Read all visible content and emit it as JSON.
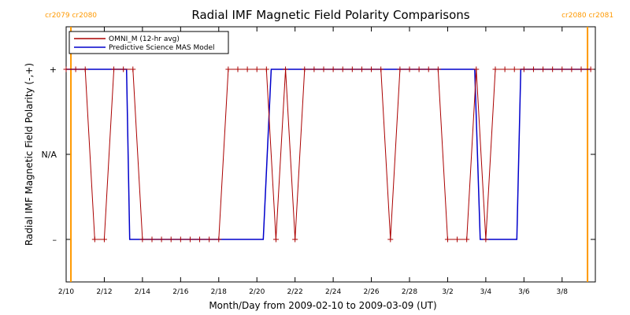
{
  "chart_data": {
    "type": "line",
    "title": "Radial IMF Magnetic Field Polarity Comparisons",
    "xlabel": "Month/Day from 2009-02-10 to 2009-03-09 (UT)",
    "ylabel": "Radial IMF Magnetic Field Polarity (-,+)",
    "x_start": "2009-02-10",
    "x_end": "2009-03-09",
    "xlim": [
      "2009-02-10",
      "2009-03-09"
    ],
    "ylim": [
      -1.5,
      1.5
    ],
    "y_ticks": [
      {
        "value": 1,
        "label": "+"
      },
      {
        "value": 0,
        "label": "N/A"
      },
      {
        "value": -1,
        "label": "–"
      }
    ],
    "x_ticks": [
      "2/10",
      "2/12",
      "2/14",
      "2/16",
      "2/18",
      "2/20",
      "2/22",
      "2/24",
      "2/26",
      "2/28",
      "3/2",
      "3/4",
      "3/6",
      "3/8"
    ],
    "x_tick_dates": [
      "2009-02-10",
      "2009-02-12",
      "2009-02-14",
      "2009-02-16",
      "2009-02-18",
      "2009-02-20",
      "2009-02-22",
      "2009-02-24",
      "2009-02-26",
      "2009-02-28",
      "2009-03-02",
      "2009-03-04",
      "2009-03-06",
      "2009-03-08"
    ],
    "carrington_markers": [
      {
        "date": "2009-02-10T06:00",
        "label_left": "cr2079",
        "label_right": "cr2080",
        "color": "#ff9900"
      },
      {
        "date": "2009-03-09T08:00",
        "label_left": "cr2080",
        "label_right": "cr2081",
        "color": "#ff9900"
      }
    ],
    "legend_position": "top-left",
    "series": [
      {
        "name": "OMNI_M (12-hr avg)",
        "color": "#aa0000",
        "markers": "plus",
        "x": [
          "2009-02-10T00:00",
          "2009-02-10T12:00",
          "2009-02-11T00:00",
          "2009-02-11T12:00",
          "2009-02-12T00:00",
          "2009-02-12T12:00",
          "2009-02-13T00:00",
          "2009-02-13T12:00",
          "2009-02-14T00:00",
          "2009-02-14T12:00",
          "2009-02-15T00:00",
          "2009-02-15T12:00",
          "2009-02-16T00:00",
          "2009-02-16T12:00",
          "2009-02-17T00:00",
          "2009-02-17T12:00",
          "2009-02-18T00:00",
          "2009-02-18T12:00",
          "2009-02-19T00:00",
          "2009-02-19T12:00",
          "2009-02-20T00:00",
          "2009-02-20T12:00",
          "2009-02-21T00:00",
          "2009-02-21T12:00",
          "2009-02-22T00:00",
          "2009-02-22T12:00",
          "2009-02-23T00:00",
          "2009-02-23T12:00",
          "2009-02-24T00:00",
          "2009-02-24T12:00",
          "2009-02-25T00:00",
          "2009-02-25T12:00",
          "2009-02-26T00:00",
          "2009-02-26T12:00",
          "2009-02-27T00:00",
          "2009-02-27T12:00",
          "2009-02-28T00:00",
          "2009-02-28T12:00",
          "2009-03-01T00:00",
          "2009-03-01T12:00",
          "2009-03-02T00:00",
          "2009-03-02T12:00",
          "2009-03-03T00:00",
          "2009-03-03T12:00",
          "2009-03-04T00:00",
          "2009-03-04T12:00",
          "2009-03-05T00:00",
          "2009-03-05T12:00",
          "2009-03-06T00:00",
          "2009-03-06T12:00",
          "2009-03-07T00:00",
          "2009-03-07T12:00",
          "2009-03-08T00:00",
          "2009-03-08T12:00",
          "2009-03-09T00:00",
          "2009-03-09T12:00"
        ],
        "y": [
          1,
          1,
          1,
          -1,
          -1,
          1,
          1,
          1,
          -1,
          -1,
          -1,
          -1,
          -1,
          -1,
          -1,
          -1,
          -1,
          1,
          1,
          1,
          1,
          1,
          -1,
          1,
          -1,
          1,
          1,
          1,
          1,
          1,
          1,
          1,
          1,
          1,
          -1,
          1,
          1,
          1,
          1,
          1,
          -1,
          -1,
          -1,
          1,
          -1,
          1,
          1,
          1,
          1,
          1,
          1,
          1,
          1,
          1,
          1,
          1
        ]
      },
      {
        "name": "Predictive Science MAS Model",
        "color": "#0000cc",
        "markers": "none",
        "x": [
          "2009-02-10T00:00",
          "2009-02-13T04:00",
          "2009-02-13T08:00",
          "2009-02-20T08:00",
          "2009-02-20T18:00",
          "2009-03-03T10:00",
          "2009-03-03T17:00",
          "2009-03-05T15:00",
          "2009-03-05T20:00",
          "2009-03-09T12:00"
        ],
        "y": [
          1,
          1,
          -1,
          -1,
          1,
          1,
          -1,
          -1,
          1,
          1
        ]
      }
    ]
  }
}
